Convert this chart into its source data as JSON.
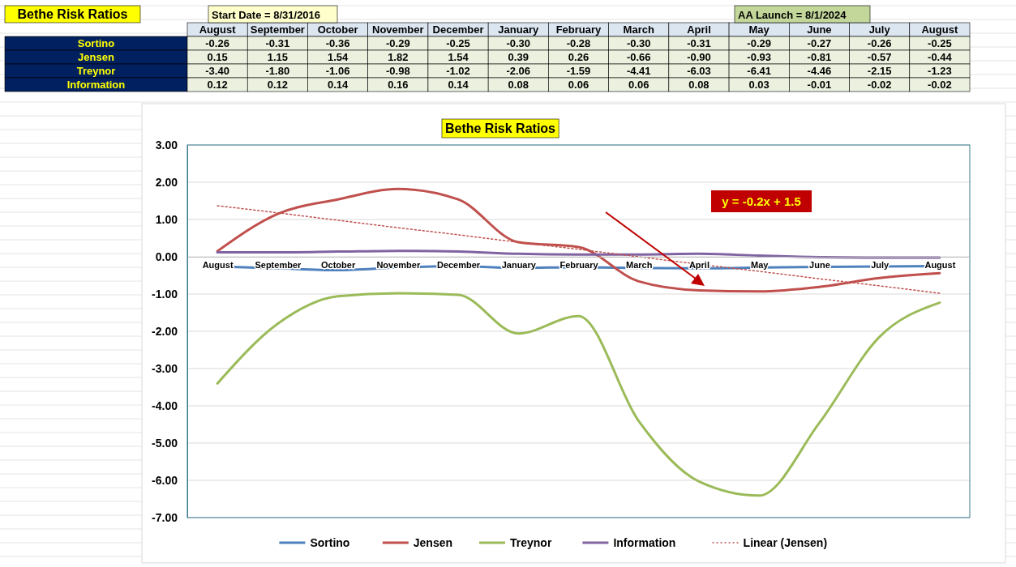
{
  "chart_data": {
    "type": "line",
    "title": "Bethe Risk Ratios",
    "annotations": [
      "Bethe Risk Ratios",
      "Start Date = 8/31/2016",
      "AA Launch = 8/1/2024",
      "y = -0.2x + 1.5"
    ],
    "categories": [
      "August",
      "September",
      "October",
      "November",
      "December",
      "January",
      "February",
      "March",
      "April",
      "May",
      "June",
      "July",
      "August"
    ],
    "series": [
      {
        "name": "Sortino",
        "color": "#4f81bd",
        "values": [
          -0.26,
          -0.31,
          -0.36,
          -0.29,
          -0.25,
          -0.3,
          -0.28,
          -0.3,
          -0.31,
          -0.29,
          -0.27,
          -0.26,
          -0.25
        ],
        "value_labels": [
          "-0.26",
          "-0.31",
          "-0.36",
          "-0.29",
          "-0.25",
          "-0.30",
          "-0.28",
          "-0.30",
          "-0.31",
          "-0.29",
          "-0.27",
          "-0.26",
          "-0.25"
        ]
      },
      {
        "name": "Jensen",
        "color": "#c0504d",
        "values": [
          0.15,
          1.15,
          1.54,
          1.82,
          1.54,
          0.39,
          0.26,
          -0.66,
          -0.9,
          -0.93,
          -0.81,
          -0.57,
          -0.44
        ],
        "value_labels": [
          "0.15",
          "1.15",
          "1.54",
          "1.82",
          "1.54",
          "0.39",
          "0.26",
          "-0.66",
          "-0.90",
          "-0.93",
          "-0.81",
          "-0.57",
          "-0.44"
        ]
      },
      {
        "name": "Treynor",
        "color": "#9bbb59",
        "values": [
          -3.4,
          -1.8,
          -1.06,
          -0.98,
          -1.02,
          -2.06,
          -1.59,
          -4.41,
          -6.03,
          -6.41,
          -4.46,
          -2.15,
          -1.23
        ],
        "value_labels": [
          "-3.40",
          "-1.80",
          "-1.06",
          "-0.98",
          "-1.02",
          "-2.06",
          "-1.59",
          "-4.41",
          "-6.03",
          "-6.41",
          "-4.46",
          "-2.15",
          "-1.23"
        ]
      },
      {
        "name": "Information",
        "color": "#8064a2",
        "values": [
          0.12,
          0.12,
          0.14,
          0.16,
          0.14,
          0.08,
          0.06,
          0.06,
          0.08,
          0.03,
          -0.01,
          -0.02,
          -0.02
        ],
        "value_labels": [
          "0.12",
          "0.12",
          "0.14",
          "0.16",
          "0.14",
          "0.08",
          "0.06",
          "0.06",
          "0.08",
          "0.03",
          "-0.01",
          "-0.02",
          "-0.02"
        ]
      },
      {
        "name": "Linear (Jensen)",
        "color": "#c0504d",
        "line_style": "dotted",
        "values": [
          1.37,
          1.18,
          0.98,
          0.78,
          0.59,
          0.39,
          0.2,
          0.0,
          -0.2,
          -0.39,
          -0.59,
          -0.78,
          -0.98
        ]
      }
    ],
    "ylim": [
      -7,
      3
    ],
    "yticks": [
      {
        "value": -7,
        "label": "-7.00"
      },
      {
        "value": -6,
        "label": "-6.00"
      },
      {
        "value": -5,
        "label": "-5.00"
      },
      {
        "value": -4,
        "label": "-4.00"
      },
      {
        "value": -3,
        "label": "-3.00"
      },
      {
        "value": -2,
        "label": "-2.00"
      },
      {
        "value": -1,
        "label": "-1.00"
      },
      {
        "value": 0,
        "label": "0.00"
      },
      {
        "value": 1,
        "label": "1.00"
      },
      {
        "value": 2,
        "label": "2.00"
      },
      {
        "value": 3,
        "label": "3.00"
      }
    ],
    "grid": "y",
    "legend": "bottom",
    "marker": "none",
    "line_style": "solid"
  }
}
